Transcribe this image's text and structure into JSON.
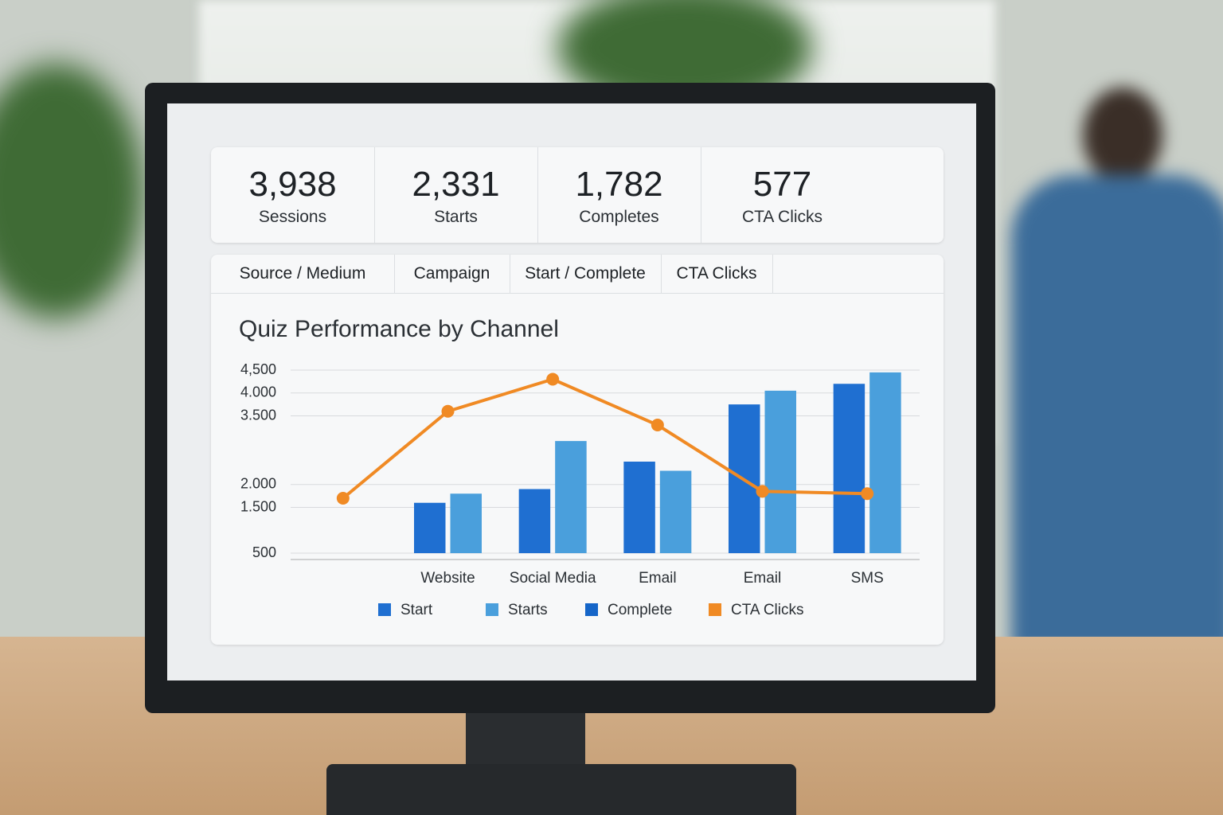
{
  "stats": [
    {
      "value": "3,938",
      "label": "Sessions"
    },
    {
      "value": "2,331",
      "label": "Starts"
    },
    {
      "value": "1,782",
      "label": "Completes"
    },
    {
      "value": "577",
      "label": "CTA Clicks"
    }
  ],
  "tabs": [
    "Source / Medium",
    "Campaign",
    "Start / Complete",
    "CTA Clicks"
  ],
  "chart_data": {
    "type": "bar",
    "title": "Quiz Performance by Channel",
    "categories": [
      null,
      "Website",
      "Social Media",
      "Email",
      "Email",
      "SMS"
    ],
    "series": [
      {
        "name": "Start",
        "type": "bar",
        "color": "#1f6fd1",
        "values": [
          null,
          1600,
          1900,
          2500,
          3750,
          4200
        ]
      },
      {
        "name": "Starts",
        "type": "bar",
        "color": "#4a9fdc",
        "values": [
          null,
          1800,
          2950,
          2300,
          4050,
          4450
        ]
      },
      {
        "name": "Complete",
        "type": "bar",
        "color": "#1565c8",
        "values": [
          null,
          null,
          null,
          null,
          null,
          null
        ]
      },
      {
        "name": "CTA Clicks",
        "type": "line",
        "color": "#f08a24",
        "values": [
          1700,
          3600,
          4300,
          3300,
          1850,
          1800
        ]
      }
    ],
    "ylim": [
      500,
      4500
    ],
    "yticks": [
      500,
      {
        "value": 1500,
        "label": "1.500"
      },
      {
        "value": 2000,
        "label": "2.000"
      },
      {
        "value": 3500,
        "label": "3.500"
      },
      {
        "value": 4000,
        "label": "4.000"
      },
      {
        "value": 4500,
        "label": "4,500"
      }
    ],
    "grid": true
  }
}
